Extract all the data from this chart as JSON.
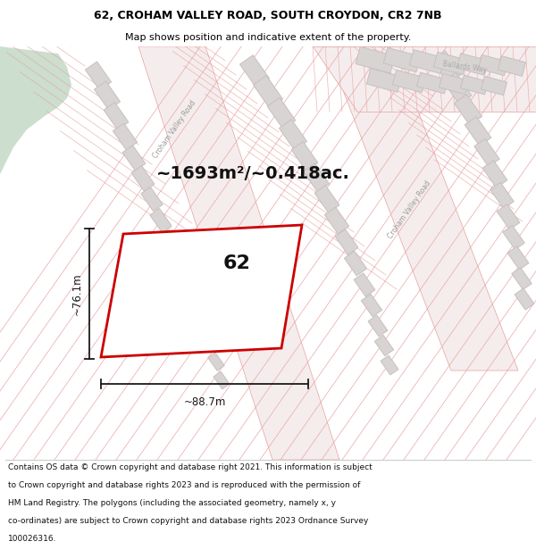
{
  "title_line1": "62, CROHAM VALLEY ROAD, SOUTH CROYDON, CR2 7NB",
  "title_line2": "Map shows position and indicative extent of the property.",
  "area_text": "~1693m²/~0.418ac.",
  "label_62": "62",
  "dim_width": "~88.7m",
  "dim_height": "~76.1m",
  "footer_lines": [
    "Contains OS data © Crown copyright and database right 2021. This information is subject",
    "to Crown copyright and database rights 2023 and is reproduced with the permission of",
    "HM Land Registry. The polygons (including the associated geometry, namely x, y",
    "co-ordinates) are subject to Crown copyright and database rights 2023 Ordnance Survey",
    "100026316."
  ],
  "bg_map_color": "#faf8f8",
  "bg_green_color": "#ccdece",
  "plot_outline_color": "#cc0000",
  "road_line_color": "#e8a0a0",
  "road_band_color": "#f5eded",
  "building_color": "#d8d4d4",
  "building_outline": "#c8c0c0",
  "dim_line_color": "#1a1a1a",
  "title_color": "#000000",
  "footer_color": "#111111",
  "separator_color": "#cccccc",
  "title_fontsize": 9.0,
  "subtitle_fontsize": 8.0,
  "area_fontsize": 14.0,
  "label_fontsize": 16.0,
  "dim_fontsize": 8.5,
  "footer_fontsize": 6.5
}
